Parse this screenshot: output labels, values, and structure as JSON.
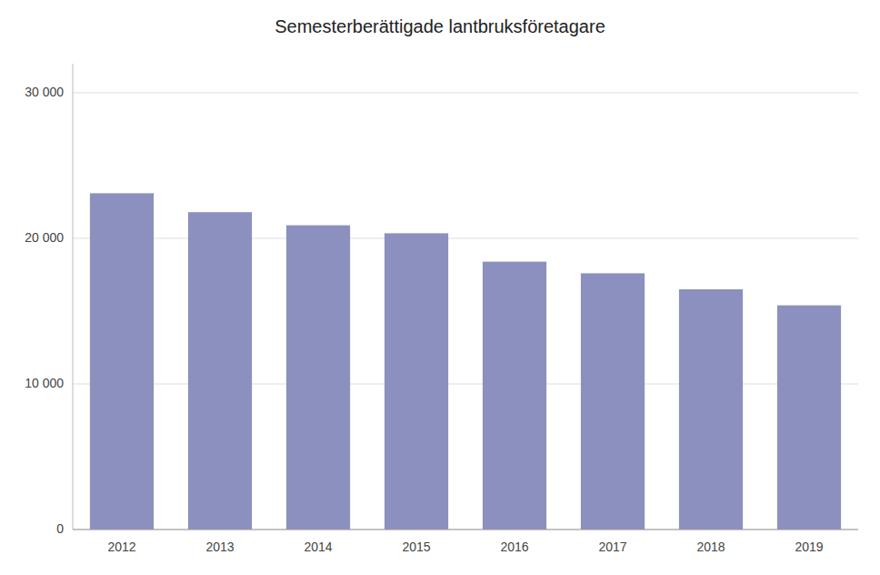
{
  "chart_data": {
    "type": "bar",
    "title": "Semesterberättigade lantbruksföretagare",
    "categories": [
      "2012",
      "2013",
      "2014",
      "2015",
      "2016",
      "2017",
      "2018",
      "2019"
    ],
    "values": [
      23100,
      21800,
      20900,
      20350,
      18400,
      17600,
      16500,
      15400
    ],
    "color": "#8b90be",
    "ylim": [
      0,
      32000
    ],
    "yticks": [
      0,
      {
        "value": 10000,
        "label": "10 000"
      },
      {
        "value": 20000,
        "label": "20 000"
      },
      {
        "value": 30000,
        "label": "30 000"
      }
    ],
    "grid": true
  }
}
